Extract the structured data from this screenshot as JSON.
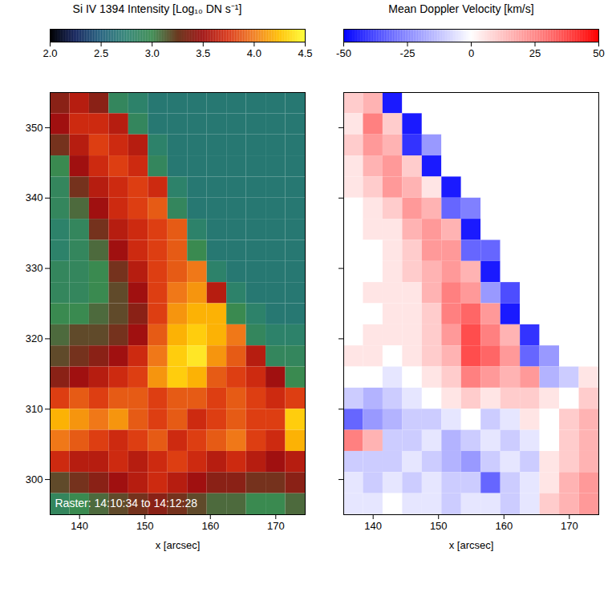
{
  "chart_data": [
    {
      "type": "heatmap",
      "xlabel": "x [arcsec]",
      "xlim": [
        135.5,
        174.5
      ],
      "xticks": [
        140,
        150,
        160,
        170
      ],
      "ylim": [
        295,
        355
      ],
      "yticks": [
        300,
        310,
        320,
        330,
        340,
        350
      ],
      "annotation": "Raster: 14:10:34 to 14:12:28",
      "colorbar": {
        "label": "Si IV 1394 Intensity [Log₁₀ DN s⁻¹]",
        "lim": [
          2,
          4.5
        ],
        "ticks": [
          {
            "value": 2,
            "label": "2.0"
          },
          {
            "value": 2.5,
            "label": "2.5"
          },
          {
            "value": 3,
            "label": "3.0"
          },
          {
            "value": 3.5,
            "label": "3.5"
          },
          {
            "value": 4,
            "label": "4.0"
          },
          {
            "value": 4.5,
            "label": "4.5"
          }
        ]
      },
      "x_edges": [
        135.5,
        138.5,
        141.5,
        144.5,
        147.5,
        150.5,
        153.5,
        156.5,
        159.5,
        162.5,
        165.5,
        168.5,
        171.5,
        174.5
      ],
      "y_edges": [
        355,
        352,
        349,
        346,
        343,
        340,
        337,
        334,
        331,
        328,
        325,
        322,
        319,
        316,
        313,
        310,
        307,
        304,
        301,
        298,
        295
      ],
      "values": [
        [
          3.4,
          3.6,
          3.4,
          2.9,
          2.8,
          2.7,
          2.7,
          2.7,
          2.7,
          2.7,
          2.7,
          2.7,
          2.7
        ],
        [
          3.5,
          3.7,
          3.7,
          3.6,
          2.9,
          2.7,
          2.7,
          2.7,
          2.7,
          2.7,
          2.7,
          2.7,
          2.7
        ],
        [
          3.3,
          3.6,
          3.8,
          3.7,
          3.6,
          2.8,
          2.7,
          2.7,
          2.7,
          2.7,
          2.7,
          2.7,
          2.7
        ],
        [
          3.0,
          3.5,
          3.7,
          3.8,
          3.7,
          2.9,
          2.7,
          2.7,
          2.7,
          2.7,
          2.7,
          2.7,
          2.7
        ],
        [
          2.9,
          3.3,
          3.6,
          3.7,
          3.8,
          3.7,
          2.8,
          2.7,
          2.7,
          2.7,
          2.7,
          2.7,
          2.7
        ],
        [
          2.9,
          3.1,
          3.5,
          3.7,
          3.8,
          3.9,
          2.9,
          2.7,
          2.7,
          2.7,
          2.7,
          2.7,
          2.7
        ],
        [
          2.8,
          2.9,
          3.3,
          3.6,
          3.7,
          3.8,
          3.9,
          2.8,
          2.7,
          2.7,
          2.7,
          2.7,
          2.7
        ],
        [
          2.8,
          2.9,
          3.1,
          3.5,
          3.7,
          3.8,
          3.9,
          3.0,
          2.7,
          2.7,
          2.7,
          2.7,
          2.7
        ],
        [
          2.9,
          2.9,
          3.0,
          3.3,
          3.6,
          3.8,
          3.9,
          4.0,
          2.8,
          2.7,
          2.7,
          2.7,
          2.7
        ],
        [
          2.9,
          2.9,
          3.0,
          3.2,
          3.5,
          3.8,
          4.0,
          4.1,
          3.6,
          2.8,
          2.7,
          2.7,
          2.7
        ],
        [
          3.0,
          3.0,
          3.1,
          3.2,
          3.4,
          3.8,
          4.1,
          4.2,
          4.2,
          3.0,
          2.8,
          2.7,
          2.7
        ],
        [
          3.1,
          3.2,
          3.2,
          3.3,
          3.5,
          3.9,
          4.2,
          4.3,
          4.2,
          4.0,
          2.9,
          2.8,
          2.8
        ],
        [
          3.2,
          3.3,
          3.4,
          3.5,
          3.7,
          4.0,
          4.3,
          4.4,
          4.1,
          3.9,
          3.6,
          2.9,
          2.9
        ],
        [
          3.4,
          3.5,
          3.6,
          3.7,
          3.8,
          4.1,
          4.3,
          4.2,
          3.9,
          3.8,
          3.7,
          3.5,
          3.0
        ],
        [
          3.8,
          3.9,
          3.8,
          3.9,
          3.9,
          3.8,
          3.9,
          3.9,
          3.8,
          3.9,
          3.8,
          3.7,
          3.8
        ],
        [
          4.2,
          4.1,
          4.0,
          4.1,
          3.9,
          3.8,
          3.9,
          3.7,
          3.8,
          3.9,
          3.8,
          3.8,
          4.3
        ],
        [
          4.0,
          3.9,
          3.8,
          3.7,
          3.8,
          3.9,
          3.7,
          3.8,
          3.9,
          4.0,
          3.8,
          3.7,
          4.2
        ],
        [
          3.7,
          3.6,
          3.6,
          3.7,
          3.6,
          3.7,
          3.8,
          3.7,
          3.6,
          3.7,
          3.6,
          3.5,
          3.6
        ],
        [
          3.2,
          3.3,
          3.4,
          3.5,
          3.6,
          3.7,
          3.6,
          3.5,
          3.4,
          3.4,
          3.3,
          3.3,
          3.4
        ],
        [
          2.9,
          3.0,
          3.1,
          3.2,
          3.3,
          3.4,
          3.3,
          3.2,
          3.1,
          3.1,
          3.0,
          3.0,
          3.1
        ]
      ]
    },
    {
      "type": "heatmap",
      "xlabel": "x [arcsec]",
      "xlim": [
        135.5,
        174.5
      ],
      "xticks": [
        140,
        150,
        160,
        170
      ],
      "ylim": [
        295,
        355
      ],
      "yticks": [
        300,
        310,
        320,
        330,
        340,
        350
      ],
      "tick_labels": "x",
      "colorbar": {
        "label": "Mean Doppler Velocity [km/s]",
        "lim": [
          -50,
          50
        ],
        "ticks": [
          -50,
          -25,
          0,
          25,
          50
        ]
      },
      "x_edges": [
        135.5,
        138.5,
        141.5,
        144.5,
        147.5,
        150.5,
        153.5,
        156.5,
        159.5,
        162.5,
        165.5,
        168.5,
        171.5,
        174.5
      ],
      "y_edges": [
        355,
        352,
        349,
        346,
        343,
        340,
        337,
        334,
        331,
        328,
        325,
        322,
        319,
        316,
        313,
        310,
        307,
        304,
        301,
        298,
        295
      ],
      "values": [
        [
          10,
          15,
          -45,
          0,
          0,
          0,
          0,
          0,
          0,
          0,
          0,
          0,
          0
        ],
        [
          5,
          25,
          10,
          -45,
          0,
          0,
          0,
          0,
          0,
          0,
          0,
          0,
          0
        ],
        [
          10,
          20,
          15,
          -40,
          -20,
          0,
          0,
          0,
          0,
          0,
          0,
          0,
          0
        ],
        [
          5,
          15,
          20,
          10,
          -45,
          0,
          0,
          0,
          0,
          0,
          0,
          0,
          0
        ],
        [
          5,
          10,
          20,
          15,
          5,
          -45,
          0,
          0,
          0,
          0,
          0,
          0,
          0
        ],
        [
          0,
          5,
          10,
          20,
          15,
          -30,
          -25,
          0,
          0,
          0,
          0,
          0,
          0
        ],
        [
          0,
          5,
          5,
          15,
          20,
          15,
          -45,
          0,
          0,
          0,
          0,
          0,
          0
        ],
        [
          0,
          0,
          5,
          10,
          20,
          20,
          -30,
          -30,
          0,
          0,
          0,
          0,
          0
        ],
        [
          0,
          0,
          5,
          10,
          15,
          20,
          15,
          -45,
          0,
          0,
          0,
          0,
          0
        ],
        [
          0,
          5,
          5,
          5,
          15,
          25,
          20,
          -20,
          -35,
          0,
          0,
          0,
          0
        ],
        [
          0,
          0,
          5,
          5,
          10,
          25,
          30,
          20,
          -45,
          0,
          0,
          0,
          0
        ],
        [
          0,
          5,
          5,
          5,
          10,
          20,
          35,
          25,
          15,
          -40,
          0,
          0,
          0
        ],
        [
          5,
          5,
          0,
          5,
          10,
          15,
          35,
          30,
          20,
          -30,
          -20,
          0,
          0
        ],
        [
          0,
          0,
          -5,
          0,
          5,
          10,
          25,
          20,
          15,
          20,
          -15,
          -10,
          5
        ],
        [
          -10,
          -15,
          -10,
          -5,
          0,
          5,
          10,
          5,
          10,
          10,
          5,
          0,
          10
        ],
        [
          -30,
          -20,
          -15,
          -10,
          -10,
          -5,
          0,
          -10,
          -5,
          5,
          0,
          10,
          15
        ],
        [
          25,
          15,
          -10,
          -10,
          -5,
          -15,
          -10,
          -5,
          -10,
          -5,
          0,
          10,
          15
        ],
        [
          -10,
          -10,
          -10,
          -5,
          -10,
          -15,
          -20,
          -10,
          -5,
          -10,
          5,
          10,
          15
        ],
        [
          -5,
          -10,
          -5,
          -10,
          -5,
          -10,
          -10,
          -30,
          -10,
          -5,
          5,
          15,
          20
        ],
        [
          -5,
          -5,
          0,
          -5,
          -5,
          -10,
          -5,
          -5,
          -10,
          -5,
          10,
          15,
          20
        ]
      ]
    }
  ]
}
